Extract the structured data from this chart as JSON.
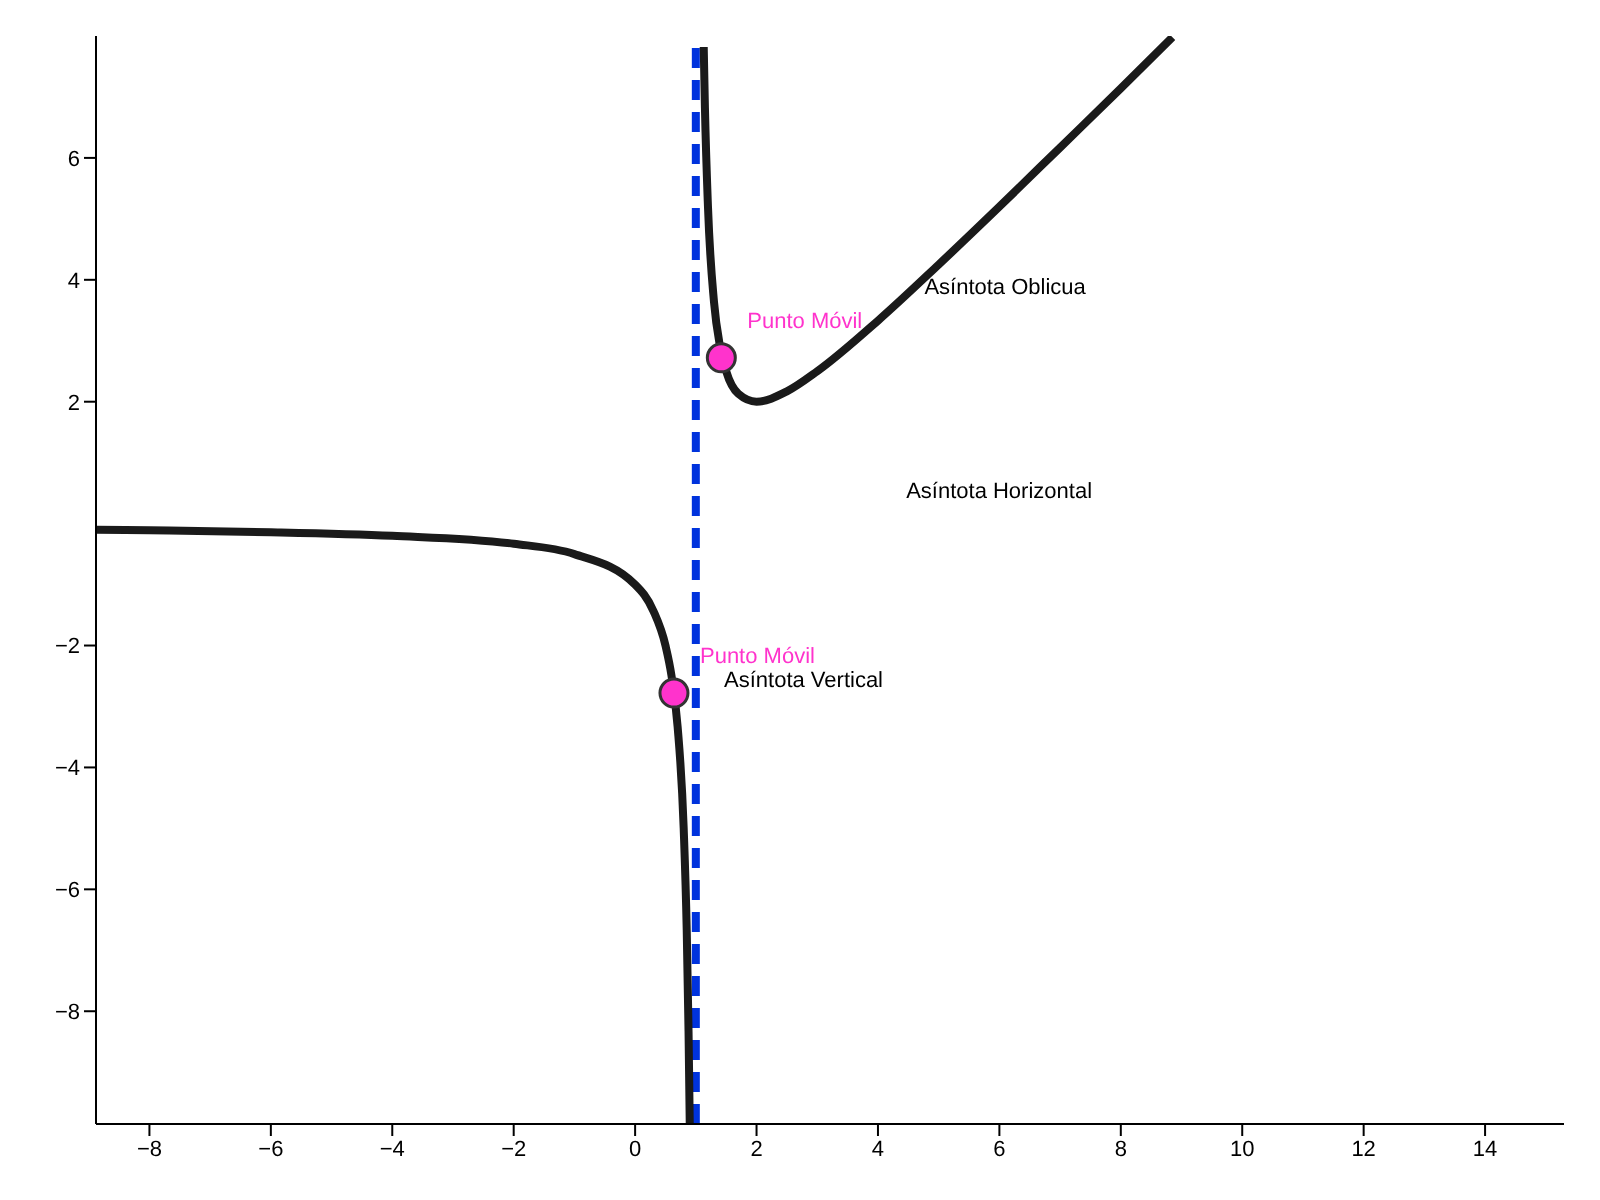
{
  "chart_data": {
    "type": "line",
    "xlim": [
      -8.88,
      15.3
    ],
    "ylim": [
      -9.85,
      8
    ],
    "xticks": [
      -8,
      -6,
      -4,
      -2,
      0,
      2,
      4,
      6,
      8,
      10,
      12,
      14
    ],
    "yticks": [
      -8,
      -6,
      -4,
      -2,
      2,
      4,
      6
    ],
    "grid": false,
    "line_style": "solid",
    "series": [
      {
        "color": "#1a1a1a",
        "x": [
          -8.88,
          -8,
          -6,
          -4,
          -2,
          -1,
          0,
          0.3,
          0.5,
          0.6,
          0.7,
          0.8,
          0.85,
          0.88,
          0.9
        ],
        "values": [
          -0.1,
          -0.11,
          -0.14,
          -0.2,
          -0.33,
          -0.5,
          -1,
          -1.43,
          -2,
          -2.5,
          -3.33,
          -5,
          -6.67,
          -8.33,
          -9.85
        ]
      },
      {
        "color": "#1a1a1a",
        "x": [
          1.13,
          1.15,
          1.2,
          1.3,
          1.4,
          1.5,
          1.7,
          2,
          2.5,
          3,
          4,
          5,
          6,
          7,
          8,
          8.85
        ],
        "values": [
          7.82,
          6.82,
          5.2,
          3.63,
          2.9,
          2.5,
          2.13,
          2,
          2.17,
          2.5,
          3.33,
          4.25,
          5.2,
          6.17,
          7.14,
          7.98
        ]
      },
      {
        "type": "scatter",
        "marker": "circle",
        "color": "#ff33cc",
        "x": [
          0.64,
          1.42
        ],
        "values": [
          -2.78,
          2.72
        ]
      }
    ],
    "ref_lines": [
      {
        "axis": "x",
        "value": 1,
        "color": "#0033dd",
        "line_style": "dashed"
      }
    ],
    "annotations": [
      {
        "text": "Punto Móvil",
        "x": 0.64,
        "y": -2.78
      },
      {
        "text": "Punto Móvil",
        "x": 1.42,
        "y": 2.72
      },
      "Asíntota Oblicua",
      "Asíntota Horizontal",
      "Asíntota Vertical"
    ]
  }
}
